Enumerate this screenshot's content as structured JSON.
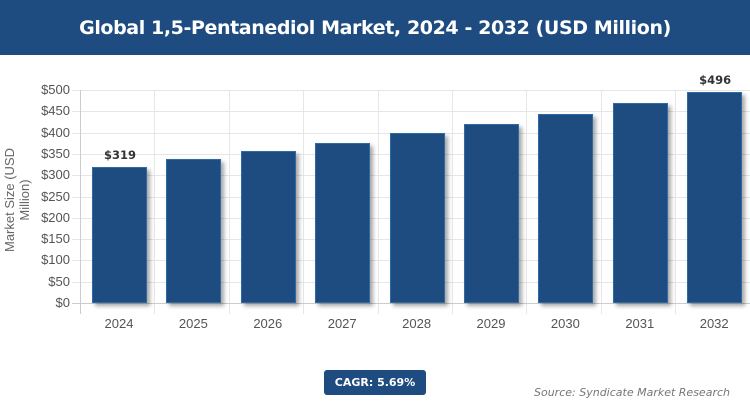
{
  "header": {
    "title": "Global 1,5-Pentanediol Market, 2024 - 2032 (USD Million)"
  },
  "chart_data": {
    "type": "bar",
    "title": "Global 1,5-Pentanediol Market, 2024 - 2032 (USD Million)",
    "xlabel": "",
    "ylabel": "Market Size (USD Million)",
    "categories": [
      "2024",
      "2025",
      "2026",
      "2027",
      "2028",
      "2029",
      "2030",
      "2031",
      "2032"
    ],
    "values": [
      319,
      337,
      356,
      376,
      398,
      420,
      444,
      469,
      496
    ],
    "data_labels": {
      "0": "$319",
      "8": "$496"
    },
    "yticks": [
      "$0",
      "$50",
      "$100",
      "$150",
      "$200",
      "$250",
      "$300",
      "$350",
      "$400",
      "$450",
      "$500"
    ],
    "ylim": [
      0,
      500
    ],
    "grid": true,
    "legend": "none",
    "bar_color": "#1f4c80"
  },
  "footer": {
    "cagr": "CAGR: 5.69%",
    "source": "Source: Syndicate Market Research"
  },
  "colors": {
    "brand": "#1f4c80"
  }
}
